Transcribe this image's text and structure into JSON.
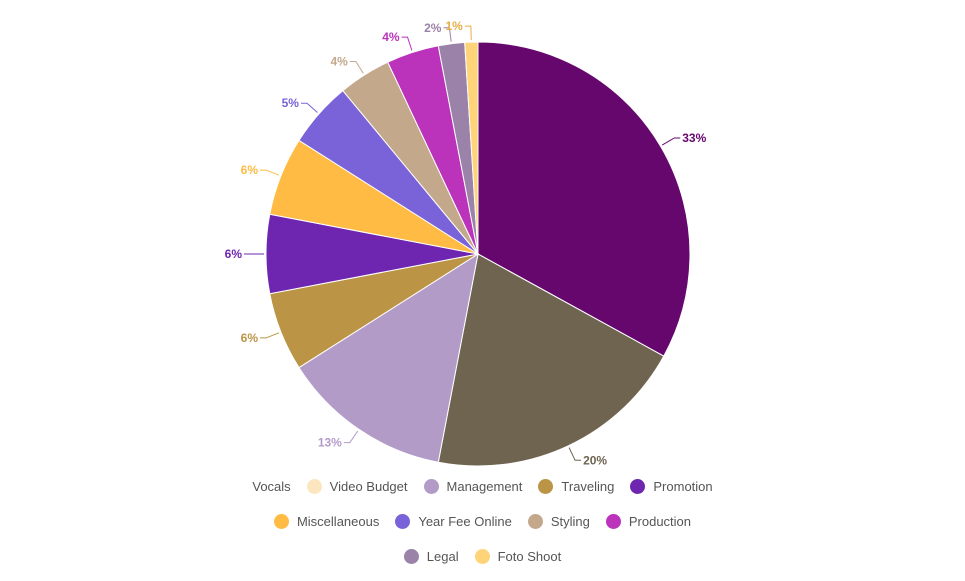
{
  "chart_data": {
    "type": "pie",
    "slices": [
      {
        "name": "Vocals",
        "value": 33,
        "label": "33%",
        "color": "#66076e"
      },
      {
        "name": "Video Budget",
        "value": 20,
        "label": "20%",
        "color": "#6e6450"
      },
      {
        "name": "Management",
        "value": 13,
        "label": "13%",
        "color": "#b39bc8"
      },
      {
        "name": "Traveling",
        "value": 6,
        "label": "6%",
        "color": "#bb9446"
      },
      {
        "name": "Promotion",
        "value": 6,
        "label": "6%",
        "color": "#6e25b0"
      },
      {
        "name": "Miscellaneous",
        "value": 6,
        "label": "6%",
        "color": "#ffbb44"
      },
      {
        "name": "Year Fee Online",
        "value": 5,
        "label": "5%",
        "color": "#7a63d8"
      },
      {
        "name": "Styling",
        "value": 4,
        "label": "4%",
        "color": "#c3a88c"
      },
      {
        "name": "Production",
        "value": 4,
        "label": "4%",
        "color": "#bb33bb"
      },
      {
        "name": "Legal",
        "value": 2,
        "label": "2%",
        "color": "#9b82a8"
      },
      {
        "name": "Foto Shoot",
        "value": 1,
        "label": "1%",
        "color": "#ffd377"
      }
    ],
    "legend": {
      "placement": "bottom",
      "rows": [
        [
          {
            "name": "Vocals",
            "swatch": false,
            "color": "#66076e"
          },
          {
            "name": "Video Budget",
            "swatch": true,
            "color": "#fbe6c0"
          },
          {
            "name": "Management",
            "swatch": true,
            "color": "#b39bc8"
          },
          {
            "name": "Traveling",
            "swatch": true,
            "color": "#bb9446"
          },
          {
            "name": "Promotion",
            "swatch": true,
            "color": "#6e25b0"
          }
        ],
        [
          {
            "name": "Miscellaneous",
            "swatch": true,
            "color": "#ffbb44"
          },
          {
            "name": "Year Fee Online",
            "swatch": true,
            "color": "#7a63d8"
          },
          {
            "name": "Styling",
            "swatch": true,
            "color": "#c3a88c"
          },
          {
            "name": "Production",
            "swatch": true,
            "color": "#bb33bb"
          }
        ],
        [
          {
            "name": "Legal",
            "swatch": true,
            "color": "#9b82a8"
          },
          {
            "name": "Foto Shoot",
            "swatch": true,
            "color": "#ffd377"
          }
        ]
      ]
    }
  }
}
